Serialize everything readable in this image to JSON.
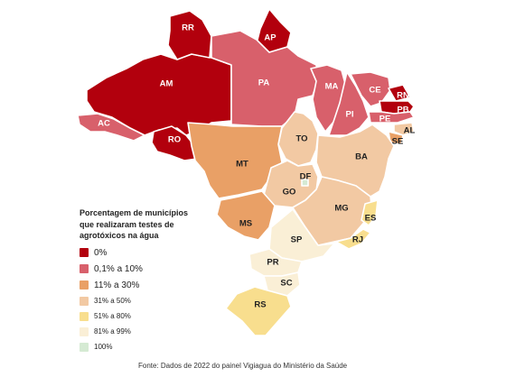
{
  "legend": {
    "title_lines": [
      "Porcentagem de municípios",
      "que realizaram testes de",
      "agrotóxicos na água"
    ],
    "items": [
      {
        "label": "0%",
        "color": "#b2000d"
      },
      {
        "label": "0,1% a 10%",
        "color": "#d8606b"
      },
      {
        "label": "11% a 30%",
        "color": "#e9a066"
      },
      {
        "label": "31% a 50%",
        "color": "#f2c9a3"
      },
      {
        "label": "51% a 80%",
        "color": "#f8de8e"
      },
      {
        "label": "81% a 99%",
        "color": "#faefd6"
      },
      {
        "label": "100%",
        "color": "#d5ead3"
      }
    ]
  },
  "states": [
    {
      "abbr": "RR",
      "category": 0
    },
    {
      "abbr": "AP",
      "category": 0
    },
    {
      "abbr": "AM",
      "category": 0
    },
    {
      "abbr": "PA",
      "category": 1
    },
    {
      "abbr": "MA",
      "category": 1
    },
    {
      "abbr": "CE",
      "category": 1
    },
    {
      "abbr": "RN",
      "category": 0
    },
    {
      "abbr": "PB",
      "category": 0
    },
    {
      "abbr": "PI",
      "category": 1
    },
    {
      "abbr": "PE",
      "category": 1
    },
    {
      "abbr": "AC",
      "category": 1
    },
    {
      "abbr": "RO",
      "category": 0
    },
    {
      "abbr": "AL",
      "category": 3
    },
    {
      "abbr": "SE",
      "category": 2
    },
    {
      "abbr": "TO",
      "category": 3
    },
    {
      "abbr": "BA",
      "category": 3
    },
    {
      "abbr": "MT",
      "category": 2
    },
    {
      "abbr": "DF",
      "category": 6
    },
    {
      "abbr": "GO",
      "category": 3
    },
    {
      "abbr": "MG",
      "category": 3
    },
    {
      "abbr": "ES",
      "category": 4
    },
    {
      "abbr": "MS",
      "category": 2
    },
    {
      "abbr": "SP",
      "category": 5
    },
    {
      "abbr": "RJ",
      "category": 4
    },
    {
      "abbr": "PR",
      "category": 5
    },
    {
      "abbr": "SC",
      "category": 5
    },
    {
      "abbr": "RS",
      "category": 4
    }
  ],
  "source": "Fonte: Dados de 2022 do painel Vigiagua do Ministério da Saúde"
}
